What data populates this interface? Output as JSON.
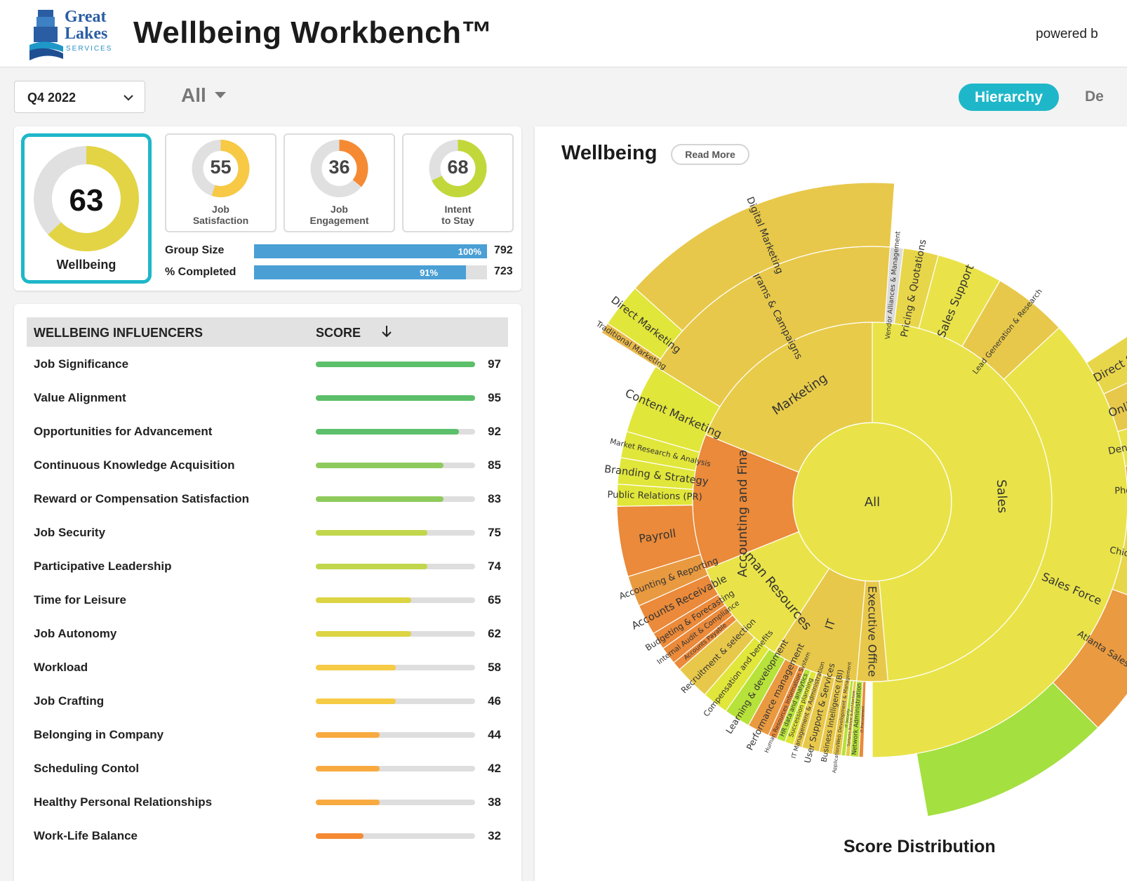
{
  "header": {
    "logo_line1": "Great",
    "logo_line2": "Lakes",
    "logo_line3": "SERVICES",
    "title": "Wellbeing Workbench™",
    "powered": "powered b"
  },
  "filters": {
    "period": "Q4 2022",
    "group": "All",
    "hierarchy_label": "Hierarchy",
    "next_tab_label": "De"
  },
  "summary": {
    "main": {
      "score": "63",
      "label": "Wellbeing",
      "value": 63,
      "color": "#e3d445"
    },
    "tiles": [
      {
        "score": "55",
        "label1": "Job",
        "label2": "Satisfaction",
        "value": 55,
        "color": "#f7c945"
      },
      {
        "score": "36",
        "label1": "Job",
        "label2": "Engagement",
        "value": 36,
        "color": "#f58a33"
      },
      {
        "score": "68",
        "label1": "Intent",
        "label2": "to Stay",
        "value": 68,
        "color": "#c2d83a"
      }
    ],
    "group_size": {
      "label": "Group Size",
      "pct_label": "100%",
      "pct": 100,
      "count": "792"
    },
    "completed": {
      "label": "% Completed",
      "pct_label": "91%",
      "pct": 91,
      "count": "723"
    }
  },
  "influencers": {
    "col1": "WELLBEING INFLUENCERS",
    "col2": "SCORE",
    "sort_icon": "arrow-down-icon",
    "rows": [
      {
        "name": "Job Significance",
        "score": 97,
        "score_text": "97",
        "fill_pct": 100,
        "color": "#5cbf6a"
      },
      {
        "name": "Value Alignment",
        "score": 95,
        "score_text": "95",
        "fill_pct": 100,
        "color": "#5cbf6a"
      },
      {
        "name": "Opportunities for Advancement",
        "score": 92,
        "score_text": "92",
        "fill_pct": 90,
        "color": "#5cbf6a"
      },
      {
        "name": "Continuous Knowledge Acquisition",
        "score": 85,
        "score_text": "85",
        "fill_pct": 80,
        "color": "#8ecb5c"
      },
      {
        "name": "Reward or Compensation Satisfaction",
        "score": 83,
        "score_text": "83",
        "fill_pct": 80,
        "color": "#8ecb5c"
      },
      {
        "name": "Job Security",
        "score": 75,
        "score_text": "75",
        "fill_pct": 70,
        "color": "#c1d64b"
      },
      {
        "name": "Participative Leadership",
        "score": 74,
        "score_text": "74",
        "fill_pct": 70,
        "color": "#c1d64b"
      },
      {
        "name": "Time for Leisure",
        "score": 65,
        "score_text": "65",
        "fill_pct": 60,
        "color": "#dcd442"
      },
      {
        "name": "Job Autonomy",
        "score": 62,
        "score_text": "62",
        "fill_pct": 60,
        "color": "#dcd442"
      },
      {
        "name": "Workload",
        "score": 58,
        "score_text": "58",
        "fill_pct": 50,
        "color": "#f6cb45"
      },
      {
        "name": "Job Crafting",
        "score": 46,
        "score_text": "46",
        "fill_pct": 50,
        "color": "#f6cb45"
      },
      {
        "name": "Belonging in Company",
        "score": 44,
        "score_text": "44",
        "fill_pct": 40,
        "color": "#f8aa40"
      },
      {
        "name": "Scheduling Contol",
        "score": 42,
        "score_text": "42",
        "fill_pct": 40,
        "color": "#f8aa40"
      },
      {
        "name": "Healthy Personal Relationships",
        "score": 38,
        "score_text": "38",
        "fill_pct": 40,
        "color": "#f8aa40"
      },
      {
        "name": "Work-Life Balance",
        "score": 32,
        "score_text": "32",
        "fill_pct": 30,
        "color": "#f58a33"
      }
    ]
  },
  "chart": {
    "title": "Wellbeing",
    "read_more": "Read More",
    "dist_title": "Score Distribution"
  },
  "chart_data": {
    "type": "sunburst",
    "root": "All",
    "segments": [
      {
        "ring": 1,
        "label": "Sales",
        "start": 270,
        "end": 445,
        "color": "#e9e349"
      },
      {
        "ring": 1,
        "label": "Executive Office",
        "start": 445,
        "end": 455,
        "color": "#e8c84a"
      },
      {
        "ring": 1,
        "label": "IT",
        "start": 455,
        "end": 483,
        "color": "#e8c84a"
      },
      {
        "ring": 1,
        "label": "Human Resources",
        "start": 483,
        "end": 518,
        "color": "#e9e349"
      },
      {
        "ring": 1,
        "label": "Accounting and Finance",
        "start": 518,
        "end": 562,
        "color": "#ea8a3a"
      },
      {
        "ring": 1,
        "label": "Marketing",
        "start": 562,
        "end": 630,
        "color": "#e8cc49"
      },
      {
        "ring": 2,
        "label": "Sales Force",
        "start": 317,
        "end": 450,
        "color": "#e9e349"
      },
      {
        "ring": 2,
        "label": "Lead Generation & Research",
        "start": 300,
        "end": 317,
        "color": "#e8c84a"
      },
      {
        "ring": 2,
        "label": "Sales Support",
        "start": 285,
        "end": 300,
        "color": "#e9e349"
      },
      {
        "ring": 2,
        "label": "Pricing & Quotations",
        "start": 277,
        "end": 285,
        "color": "#e8d64a"
      },
      {
        "ring": 2,
        "label": "Vendor Alliances & Management",
        "start": 274,
        "end": 277,
        "color": "#dcdcdc"
      },
      {
        "ring": 2,
        "label": "Programs & Campaigns",
        "start": 212,
        "end": 274,
        "color": "#e8c84a"
      },
      {
        "ring": 2,
        "label": "Content Marketing",
        "start": 196,
        "end": 212,
        "color": "#e1e63a"
      },
      {
        "ring": 2,
        "label": "Market Research & Analysis",
        "start": 190,
        "end": 196,
        "color": "#e1e63a"
      },
      {
        "ring": 2,
        "label": "Branding & Strategy",
        "start": 184,
        "end": 190,
        "color": "#e1e63a"
      },
      {
        "ring": 2,
        "label": "Public Relations (PR)",
        "start": 179,
        "end": 184,
        "color": "#e1e63a"
      },
      {
        "ring": 2,
        "label": "Payroll",
        "start": 163,
        "end": 179,
        "color": "#ea8a3a"
      },
      {
        "ring": 2,
        "label": "Accounting & Reporting",
        "start": 156,
        "end": 163,
        "color": "#e99a40"
      },
      {
        "ring": 2,
        "label": "Accounts Receivable",
        "start": 149,
        "end": 156,
        "color": "#ea8a3a"
      },
      {
        "ring": 2,
        "label": "Budgeting & Forecasting",
        "start": 145,
        "end": 149,
        "color": "#ea8a3a"
      },
      {
        "ring": 2,
        "label": "Internal Audit & Compliance",
        "start": 141,
        "end": 145,
        "color": "#ea8a3a"
      },
      {
        "ring": 2,
        "label": "Accounts Payable",
        "start": 139,
        "end": 141,
        "color": "#ea8a3a"
      },
      {
        "ring": 2,
        "label": "Recruitment & selection",
        "start": 131,
        "end": 139,
        "color": "#e8c84a"
      },
      {
        "ring": 2,
        "label": "Compensation and benefits",
        "start": 125,
        "end": 131,
        "color": "#e1e63a"
      },
      {
        "ring": 2,
        "label": "Learning & development",
        "start": 119,
        "end": 125,
        "color": "#b7e23a"
      },
      {
        "ring": 2,
        "label": "Performance management",
        "start": 114,
        "end": 119,
        "color": "#e99a40"
      },
      {
        "ring": 2,
        "label": "Human Resources Information System",
        "start": 112,
        "end": 114,
        "color": "#ea8a3a"
      },
      {
        "ring": 2,
        "label": "HR data and analytics",
        "start": 110,
        "end": 112,
        "color": "#b7e23a"
      },
      {
        "ring": 2,
        "label": "Succession planning",
        "start": 108,
        "end": 110,
        "color": "#e1e63a"
      },
      {
        "ring": 2,
        "label": "IT Management & Administration",
        "start": 106,
        "end": 108,
        "color": "#e8c84a"
      },
      {
        "ring": 2,
        "label": "User Support & Services",
        "start": 102,
        "end": 106,
        "color": "#e8c84a"
      },
      {
        "ring": 2,
        "label": "Business Intelligence (BI)",
        "start": 99,
        "end": 102,
        "color": "#e8c84a"
      },
      {
        "ring": 2,
        "label": "Application/Web Development & Management",
        "start": 97,
        "end": 99,
        "color": "#e8c84a"
      },
      {
        "ring": 2,
        "label": "IT Security",
        "start": 96,
        "end": 97,
        "color": "#b7e23a"
      },
      {
        "ring": 2,
        "label": "Systems Analyst & Architecture",
        "start": 95,
        "end": 96,
        "color": "#e8c84a"
      },
      {
        "ring": 2,
        "label": "Network Administration",
        "start": 93,
        "end": 95,
        "color": "#b7e23a"
      },
      {
        "ring": 2,
        "label": "IT Procurement",
        "start": 92,
        "end": 93,
        "color": "#ea8a3a"
      },
      {
        "ring": 3,
        "label": "Direct Sales",
        "start": 327,
        "end": 335,
        "color": "#e8d64a"
      },
      {
        "ring": 3,
        "label": "Online Sales",
        "start": 335,
        "end": 344,
        "color": "#e8c84a"
      },
      {
        "ring": 3,
        "label": "Denver Sales Team",
        "start": 344,
        "end": 352,
        "color": "#e9e349"
      },
      {
        "ring": 3,
        "label": "Phoenix Sales Team",
        "start": 352,
        "end": 363,
        "color": "#ea9a40"
      },
      {
        "ring": 3,
        "label": "Chicago Sales Team",
        "start": 363,
        "end": 380,
        "color": "#e8d64a"
      },
      {
        "ring": 3,
        "label": "Atlanta Sales Team",
        "start": 380,
        "end": 405,
        "color": "#ea9a40"
      },
      {
        "ring": 3,
        "label": "",
        "start": 405,
        "end": 440,
        "color": "#a4e040"
      },
      {
        "ring": 3,
        "label": "Digital Marketing",
        "start": 222,
        "end": 274,
        "color": "#e8c84a"
      },
      {
        "ring": 3,
        "label": "Direct Marketing",
        "start": 214,
        "end": 222,
        "color": "#e1e63a"
      },
      {
        "ring": 3,
        "label": "Traditional Marketing",
        "start": 212,
        "end": 214,
        "color": "#e8b84a"
      }
    ]
  }
}
